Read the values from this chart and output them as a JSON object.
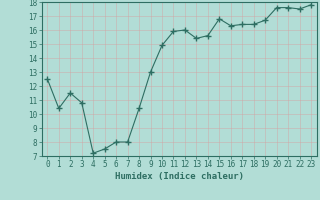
{
  "x": [
    0,
    1,
    2,
    3,
    4,
    5,
    6,
    7,
    8,
    9,
    10,
    11,
    12,
    13,
    14,
    15,
    16,
    17,
    18,
    19,
    20,
    21,
    22,
    23
  ],
  "y": [
    12.5,
    10.4,
    11.5,
    10.8,
    7.2,
    7.5,
    8.0,
    8.0,
    10.4,
    13.0,
    14.9,
    15.9,
    16.0,
    15.4,
    15.6,
    16.8,
    16.3,
    16.4,
    16.4,
    16.7,
    17.6,
    17.6,
    17.5,
    17.8
  ],
  "line_color": "#2e6e62",
  "marker": "+",
  "marker_size": 4,
  "bg_color": "#b2ddd6",
  "grid_color": "#c8e8e2",
  "xlabel": "Humidex (Indice chaleur)",
  "ylim": [
    7,
    18
  ],
  "xlim": [
    -0.5,
    23.5
  ],
  "yticks": [
    7,
    8,
    9,
    10,
    11,
    12,
    13,
    14,
    15,
    16,
    17,
    18
  ],
  "xticks": [
    0,
    1,
    2,
    3,
    4,
    5,
    6,
    7,
    8,
    9,
    10,
    11,
    12,
    13,
    14,
    15,
    16,
    17,
    18,
    19,
    20,
    21,
    22,
    23
  ],
  "tick_color": "#2e6e62",
  "label_color": "#2e6e62",
  "xlabel_fontsize": 6.5,
  "tick_fontsize": 5.5,
  "spine_color": "#2e6e62"
}
